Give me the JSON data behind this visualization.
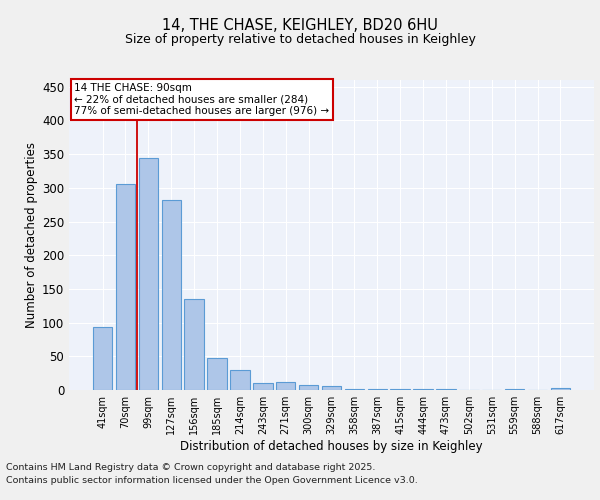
{
  "title1": "14, THE CHASE, KEIGHLEY, BD20 6HU",
  "title2": "Size of property relative to detached houses in Keighley",
  "xlabel": "Distribution of detached houses by size in Keighley",
  "ylabel": "Number of detached properties",
  "categories": [
    "41sqm",
    "70sqm",
    "99sqm",
    "127sqm",
    "156sqm",
    "185sqm",
    "214sqm",
    "243sqm",
    "271sqm",
    "300sqm",
    "329sqm",
    "358sqm",
    "387sqm",
    "415sqm",
    "444sqm",
    "473sqm",
    "502sqm",
    "531sqm",
    "559sqm",
    "588sqm",
    "617sqm"
  ],
  "values": [
    93,
    305,
    345,
    282,
    135,
    47,
    30,
    11,
    12,
    8,
    6,
    2,
    1,
    2,
    1,
    1,
    0,
    0,
    1,
    0,
    3
  ],
  "bar_color": "#aec6e8",
  "bar_edge_color": "#5b9bd5",
  "bar_edge_width": 0.8,
  "vline_color": "#cc0000",
  "annotation_box_text": "14 THE CHASE: 90sqm\n← 22% of detached houses are smaller (284)\n77% of semi-detached houses are larger (976) →",
  "ylim": [
    0,
    460
  ],
  "yticks": [
    0,
    50,
    100,
    150,
    200,
    250,
    300,
    350,
    400,
    450
  ],
  "background_color": "#eef2fa",
  "grid_color": "#ffffff",
  "footer_line1": "Contains HM Land Registry data © Crown copyright and database right 2025.",
  "footer_line2": "Contains public sector information licensed under the Open Government Licence v3.0."
}
